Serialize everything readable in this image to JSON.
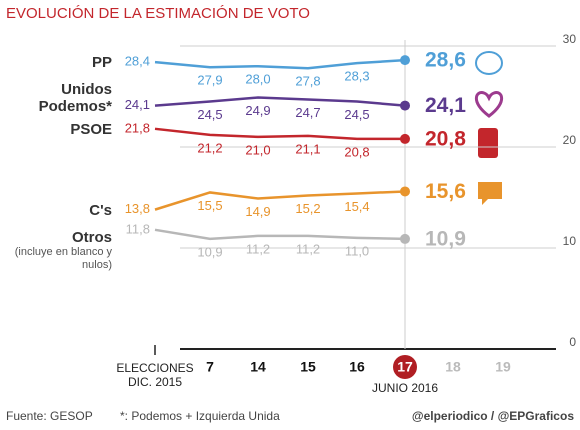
{
  "chart_data": {
    "type": "line",
    "title": "EVOLUCIÓN DE LA ESTIMACIÓN DE VOTO",
    "categories": [
      "ELECCIONES DIC. 2015",
      "7",
      "14",
      "15",
      "16",
      "17",
      "18",
      "19"
    ],
    "highlight_category": 5,
    "highlight_color": "#b01e23",
    "annotation": "JUNIO 2016",
    "series": [
      {
        "name": "PP",
        "color": "#4f9fd7",
        "values": [
          28.4,
          27.9,
          28.0,
          27.8,
          28.3,
          28.6,
          null,
          null
        ],
        "value_labels": [
          "28,4",
          "27,9",
          "28,0",
          "27,8",
          "28,3",
          "28,6",
          null,
          null
        ]
      },
      {
        "name": "Unidos Podemos*",
        "color": "#5b3a8e",
        "values": [
          24.1,
          24.5,
          24.9,
          24.7,
          24.5,
          24.1,
          null,
          null
        ],
        "value_labels": [
          "24,1",
          "24,5",
          "24,9",
          "24,7",
          "24,5",
          "24,1",
          null,
          null
        ]
      },
      {
        "name": "PSOE",
        "color": "#c3262c",
        "values": [
          21.8,
          21.2,
          21.0,
          21.1,
          20.8,
          20.8,
          null,
          null
        ],
        "value_labels": [
          "21,8",
          "21,2",
          "21,0",
          "21,1",
          "20,8",
          "20,8",
          null,
          null
        ]
      },
      {
        "name": "C's",
        "color": "#e8942c",
        "values": [
          13.8,
          15.5,
          14.9,
          15.2,
          15.4,
          15.6,
          null,
          null
        ],
        "value_labels": [
          "13,8",
          "15,5",
          "14,9",
          "15,2",
          "15,4",
          "15,6",
          null,
          null
        ]
      },
      {
        "name": "Otros",
        "note": "(incluye en blanco y nulos)",
        "color": "#b7b7b7",
        "values": [
          11.8,
          10.9,
          11.2,
          11.2,
          11.0,
          10.9,
          null,
          null
        ],
        "value_labels": [
          "11,8",
          "10,9",
          "11,2",
          "11,2",
          "11,0",
          "10,9",
          null,
          null
        ]
      }
    ],
    "ylim": [
      0,
      30
    ],
    "yticks": [
      0,
      10,
      20,
      30
    ],
    "grid": true,
    "source": "Fuente: GESOP",
    "footnote": "*: Podemos + Izquierda Unida",
    "credit": "@elperiodico / @EPGraficos"
  }
}
